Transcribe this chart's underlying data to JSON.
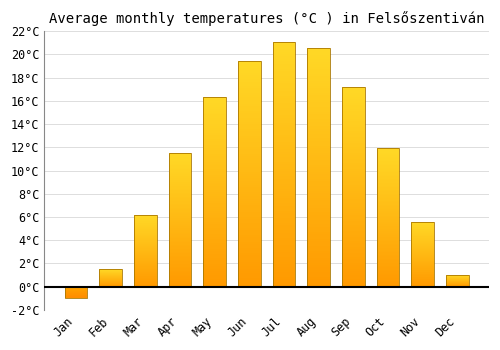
{
  "title": "Average monthly temperatures (°C ) in Felsőszentiván",
  "months": [
    "Jan",
    "Feb",
    "Mar",
    "Apr",
    "May",
    "Jun",
    "Jul",
    "Aug",
    "Sep",
    "Oct",
    "Nov",
    "Dec"
  ],
  "values": [
    -1.0,
    1.5,
    6.2,
    11.5,
    16.3,
    19.4,
    21.1,
    20.6,
    17.2,
    11.9,
    5.6,
    1.0
  ],
  "bar_color_top": "#FFD040",
  "bar_color_bottom": "#FFA000",
  "bar_edge_color": "#AA7700",
  "ylim": [
    -2,
    22
  ],
  "yticks": [
    -2,
    0,
    2,
    4,
    6,
    8,
    10,
    12,
    14,
    16,
    18,
    20,
    22
  ],
  "background_color": "#FFFFFF",
  "grid_color": "#DDDDDD",
  "title_fontsize": 10,
  "tick_fontsize": 8.5,
  "bar_width": 0.65
}
